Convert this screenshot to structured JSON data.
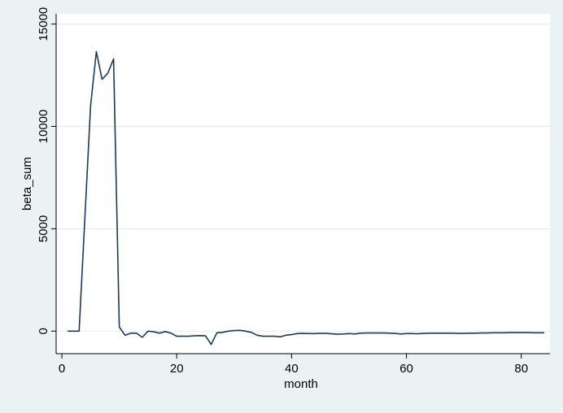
{
  "chart_data": {
    "type": "line",
    "title": "",
    "xlabel": "month",
    "ylabel": "beta_sum",
    "xlim": [
      -1,
      85
    ],
    "ylim": [
      -1100,
      15500
    ],
    "xticks": [
      0,
      20,
      40,
      60,
      80
    ],
    "yticks": [
      0,
      5000,
      10000,
      15000
    ],
    "grid": "horizontal",
    "legend": "none",
    "colors": {
      "line": "#1a3a5c",
      "plot_bg": "#ffffff",
      "outer_bg": "#eaf2f3",
      "grid": "#e6ecee"
    },
    "series": [
      {
        "x": [
          1,
          2,
          3,
          4,
          5,
          6,
          7,
          8,
          9,
          10,
          11,
          12,
          13,
          14,
          15,
          16,
          17,
          18,
          19,
          20,
          21,
          22,
          23,
          24,
          25,
          26,
          27,
          28,
          29,
          30,
          31,
          32,
          33,
          34,
          35,
          36,
          37,
          38,
          39,
          40,
          41,
          42,
          43,
          44,
          45,
          46,
          47,
          48,
          49,
          50,
          51,
          52,
          53,
          54,
          55,
          56,
          57,
          58,
          59,
          60,
          61,
          62,
          63,
          64,
          65,
          66,
          67,
          68,
          69,
          70,
          71,
          72,
          73,
          74,
          75,
          76,
          77,
          78,
          79,
          80,
          81,
          82,
          83,
          84
        ],
        "y": [
          0,
          0,
          0,
          5500,
          11000,
          13650,
          12300,
          12600,
          13300,
          200,
          -200,
          -100,
          -100,
          -300,
          0,
          -30,
          -100,
          -20,
          -100,
          -250,
          -250,
          -250,
          -230,
          -220,
          -230,
          -650,
          -80,
          -60,
          0,
          30,
          40,
          0,
          -60,
          -200,
          -250,
          -250,
          -250,
          -280,
          -200,
          -170,
          -120,
          -110,
          -120,
          -120,
          -110,
          -110,
          -130,
          -150,
          -140,
          -120,
          -140,
          -100,
          -90,
          -90,
          -90,
          -90,
          -100,
          -110,
          -140,
          -120,
          -120,
          -130,
          -110,
          -100,
          -100,
          -100,
          -100,
          -100,
          -110,
          -110,
          -100,
          -100,
          -90,
          -90,
          -80,
          -80,
          -80,
          -70,
          -70,
          -70,
          -70,
          -80,
          -80,
          -80
        ]
      }
    ]
  }
}
